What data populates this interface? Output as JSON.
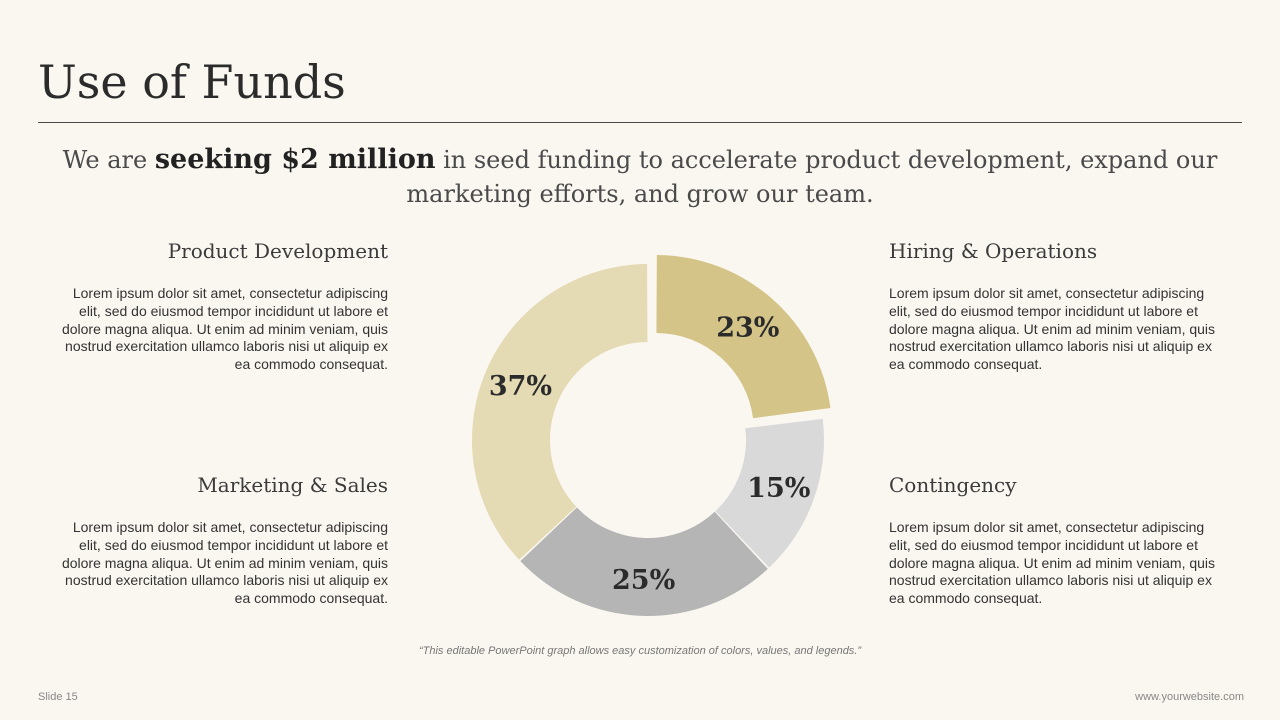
{
  "slide": {
    "title": "Use of Funds",
    "intro_prefix": "We are ",
    "intro_bold": "seeking $2 million",
    "intro_suffix": " in seed funding to accelerate product development, expand our marketing efforts, and grow our team.",
    "note": "“This editable PowerPoint graph allows easy customization of colors, values, and legends.”",
    "footer_left": "Slide 15",
    "footer_right": "www.yourwebsite.com"
  },
  "blocks": [
    {
      "heading": "Product Development",
      "body": "Lorem ipsum dolor sit amet, consectetur adipiscing elit, sed do eiusmod tempor incididunt ut labore et dolore magna aliqua. Ut enim ad minim veniam, quis nostrud exercitation ullamco laboris nisi ut aliquip ex ea commodo consequat."
    },
    {
      "heading": "Hiring & Operations",
      "body": "Lorem ipsum dolor sit amet, consectetur adipiscing elit, sed do eiusmod tempor incididunt ut labore et dolore magna aliqua. Ut enim ad minim veniam, quis nostrud exercitation ullamco laboris nisi ut aliquip ex ea commodo consequat."
    },
    {
      "heading": "Marketing & Sales",
      "body": "Lorem ipsum dolor sit amet, consectetur adipiscing elit, sed do eiusmod tempor incididunt ut labore et dolore magna aliqua. Ut enim ad minim veniam, quis nostrud exercitation ullamco laboris nisi ut aliquip ex ea commodo consequat."
    },
    {
      "heading": "Contingency",
      "body": "Lorem ipsum dolor sit amet, consectetur adipiscing elit, sed do eiusmod tempor incididunt ut labore et dolore magna aliqua. Ut enim ad minim veniam, quis nostrud exercitation ullamco laboris nisi ut aliquip ex ea commodo consequat."
    }
  ],
  "chart_data": {
    "type": "pie",
    "variant": "donut",
    "title": "",
    "labels": [
      "23%",
      "15%",
      "25%",
      "37%"
    ],
    "values": [
      23,
      15,
      25,
      37
    ],
    "colors": [
      "#d4c487",
      "#d9d9d9",
      "#b5b5b5",
      "#e4dab3"
    ],
    "exploded": [
      true,
      false,
      false,
      false
    ],
    "start": "12 o'clock, clockwise",
    "legend": "none"
  }
}
